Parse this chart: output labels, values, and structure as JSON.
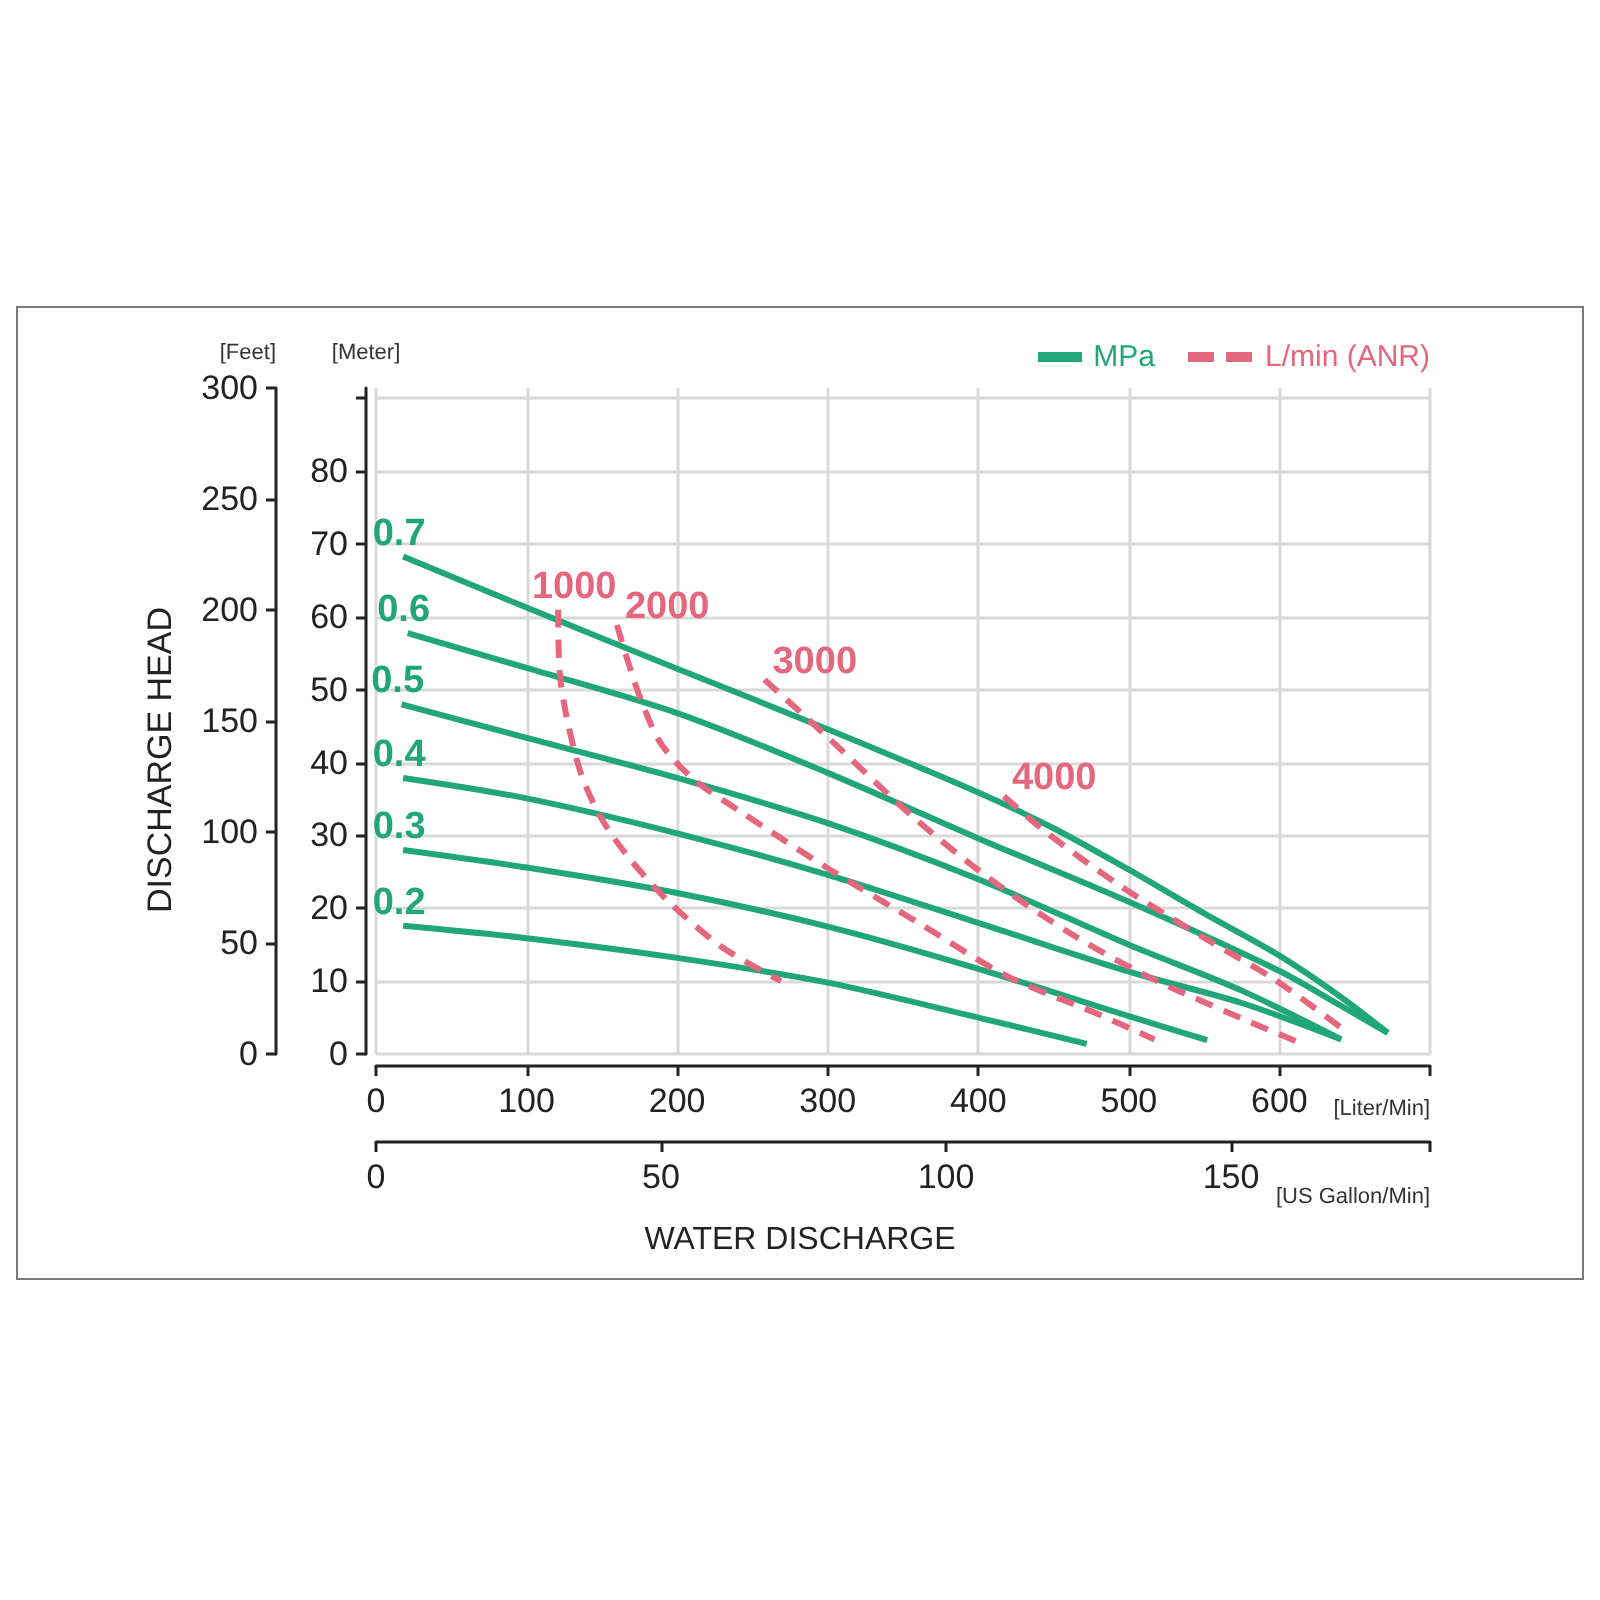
{
  "chart_data": {
    "type": "line",
    "xlabel": "[Liter/Min]",
    "x2label": "[US Gallon/Min]",
    "ylabel": "[Meter]",
    "y2label": "[Feet]",
    "annotations": [
      "DISCHARGE HEAD",
      "WATER DISCHARGE",
      "MPa",
      "L/min (ANR)"
    ],
    "xlim": [
      0,
      700
    ],
    "xticks": [
      0,
      100,
      200,
      300,
      400,
      500,
      600,
      {
        "value": 700,
        "label": null
      }
    ],
    "x2lim": [
      0,
      184.9
    ],
    "x2ticks": [
      0,
      50,
      100,
      150,
      {
        "value": 184.9,
        "label": null
      }
    ],
    "ylim": [
      0,
      91.44
    ],
    "yticks": [
      0,
      10,
      20,
      30,
      40,
      50,
      60,
      70,
      80,
      {
        "value": 90,
        "label": null
      }
    ],
    "y2lim": [
      0,
      300
    ],
    "y2ticks": [
      0,
      50,
      100,
      150,
      200,
      250,
      300
    ],
    "grid": true,
    "marker": "none",
    "series": [
      {
        "name": "0.7",
        "color": "#21a67a",
        "line_style": "solid",
        "x": [
          18,
          100,
          200,
          300,
          400,
          450,
          500,
          550,
          600,
          641,
          672
        ],
        "values": [
          68.3,
          61.3,
          52.9,
          44.6,
          35.9,
          31.0,
          25.3,
          19.3,
          13.5,
          7.8,
          2.9
        ]
      },
      {
        "name": "0.6",
        "color": "#21a67a",
        "line_style": "solid",
        "x": [
          21,
          100,
          200,
          300,
          400,
          500,
          600,
          641,
          672
        ],
        "values": [
          57.8,
          53.0,
          46.8,
          38.6,
          29.6,
          20.9,
          11.4,
          6.6,
          2.9
        ]
      },
      {
        "name": "0.5",
        "color": "#21a67a",
        "line_style": "solid",
        "x": [
          17,
          100,
          200,
          300,
          400,
          500,
          575,
          641
        ],
        "values": [
          48.0,
          43.4,
          37.9,
          31.7,
          24.0,
          15.0,
          8.7,
          2.0
        ]
      },
      {
        "name": "0.4",
        "color": "#21a67a",
        "line_style": "solid",
        "x": [
          18,
          100,
          200,
          300,
          400,
          500,
          575,
          641
        ],
        "values": [
          37.9,
          35.1,
          30.3,
          24.6,
          18.0,
          11.3,
          7.0,
          2.0
        ]
      },
      {
        "name": "0.3",
        "color": "#21a67a",
        "line_style": "solid",
        "x": [
          18,
          100,
          200,
          300,
          400,
          500,
          552
        ],
        "values": [
          28.0,
          25.6,
          22.1,
          17.5,
          11.7,
          5.2,
          1.9
        ]
      },
      {
        "name": "0.2",
        "color": "#21a67a",
        "line_style": "solid",
        "x": [
          18,
          100,
          200,
          300,
          400,
          472
        ],
        "values": [
          17.6,
          15.9,
          13.2,
          9.8,
          5.0,
          1.4
        ]
      },
      {
        "name": "1000",
        "color": "#e4677d",
        "line_style": "dashed",
        "x": [
          121,
          122,
          127,
          136,
          149,
          167,
          193,
          229,
          269
        ],
        "values": [
          61.0,
          52.3,
          45.9,
          38.6,
          32.6,
          27.2,
          21.2,
          14.8,
          10.0
        ]
      },
      {
        "name": "2000",
        "color": "#e4677d",
        "line_style": "dashed",
        "x": [
          160,
          167,
          176,
          189,
          211,
          242,
          300,
          362,
          419,
          477,
          517
        ],
        "values": [
          58.9,
          54.1,
          48.6,
          42.7,
          37.7,
          33.3,
          25.5,
          17.8,
          10.7,
          5.7,
          2.0
        ]
      },
      {
        "name": "3000",
        "color": "#e4677d",
        "line_style": "dashed",
        "x": [
          258,
          300,
          357,
          408,
          464,
          521,
          614
        ],
        "values": [
          51.4,
          43.5,
          32.5,
          24.0,
          16.2,
          9.8,
          1.5
        ]
      },
      {
        "name": "4000",
        "color": "#e4677d",
        "line_style": "dashed",
        "x": [
          417,
          446,
          495,
          552,
          597,
          641
        ],
        "values": [
          35.4,
          30.3,
          23.0,
          15.7,
          10.2,
          3.6
        ]
      }
    ]
  }
}
